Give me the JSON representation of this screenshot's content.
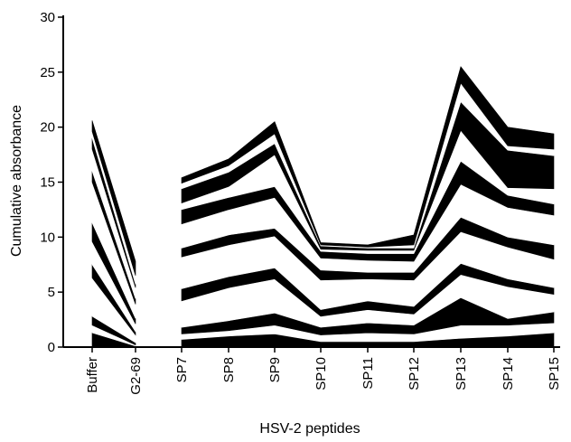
{
  "chart_data": {
    "type": "area",
    "stacked": true,
    "title": "",
    "xlabel": "HSV-2 peptides",
    "ylabel": "Cumulative absorbance",
    "ylim": [
      0,
      30
    ],
    "yticks": [
      0,
      5,
      10,
      15,
      20,
      25,
      30
    ],
    "categories": [
      "Buffer",
      "G2-69",
      "SP7",
      "SP8",
      "SP9",
      "SP10",
      "SP11",
      "SP12",
      "SP13",
      "SP14",
      "SP15"
    ],
    "gap_after_index": 1,
    "band_colors": [
      "#000000",
      "#ffffff"
    ],
    "grid": false,
    "legend": "none",
    "cumulative_boundaries": [
      [
        0,
        0,
        0,
        0,
        0,
        0,
        0,
        0,
        0,
        0,
        0
      ],
      [
        1.3,
        0.1,
        0.7,
        1.0,
        1.2,
        0.5,
        0.5,
        0.5,
        0.8,
        1.0,
        1.3
      ],
      [
        2.0,
        0.2,
        1.2,
        1.5,
        2.0,
        1.1,
        1.3,
        1.2,
        2.0,
        2.0,
        2.2
      ],
      [
        2.8,
        0.4,
        1.8,
        2.4,
        3.1,
        1.8,
        2.2,
        2.0,
        4.5,
        2.6,
        3.2
      ],
      [
        6.3,
        1.1,
        4.2,
        5.4,
        6.2,
        2.8,
        3.4,
        3.0,
        6.6,
        5.5,
        4.8
      ],
      [
        7.5,
        1.4,
        5.3,
        6.4,
        7.2,
        3.4,
        4.2,
        3.7,
        7.6,
        6.2,
        5.4
      ],
      [
        9.6,
        2.1,
        8.2,
        9.3,
        10.1,
        6.1,
        6.2,
        6.1,
        10.5,
        9.1,
        8.0
      ],
      [
        11.3,
        2.6,
        9.0,
        10.2,
        10.8,
        7.0,
        6.8,
        6.8,
        11.8,
        10.0,
        9.3
      ],
      [
        15.0,
        3.9,
        11.2,
        12.5,
        13.6,
        8.1,
        7.9,
        7.8,
        14.8,
        12.7,
        12.0
      ],
      [
        16.0,
        4.4,
        12.5,
        13.6,
        14.6,
        8.7,
        8.5,
        8.5,
        16.9,
        13.8,
        13.0
      ],
      [
        18.0,
        5.4,
        13.1,
        14.6,
        17.5,
        8.9,
        8.8,
        8.8,
        19.7,
        14.5,
        14.4
      ],
      [
        19.0,
        5.7,
        14.4,
        15.9,
        18.5,
        9.2,
        9.0,
        9.0,
        22.3,
        17.9,
        17.4
      ],
      [
        19.6,
        6.5,
        14.9,
        16.5,
        19.4,
        9.3,
        9.1,
        9.3,
        24.0,
        18.3,
        18.0
      ],
      [
        20.6,
        7.8,
        15.4,
        17.1,
        20.5,
        9.5,
        9.3,
        10.2,
        25.5,
        20.0,
        19.4
      ]
    ]
  }
}
